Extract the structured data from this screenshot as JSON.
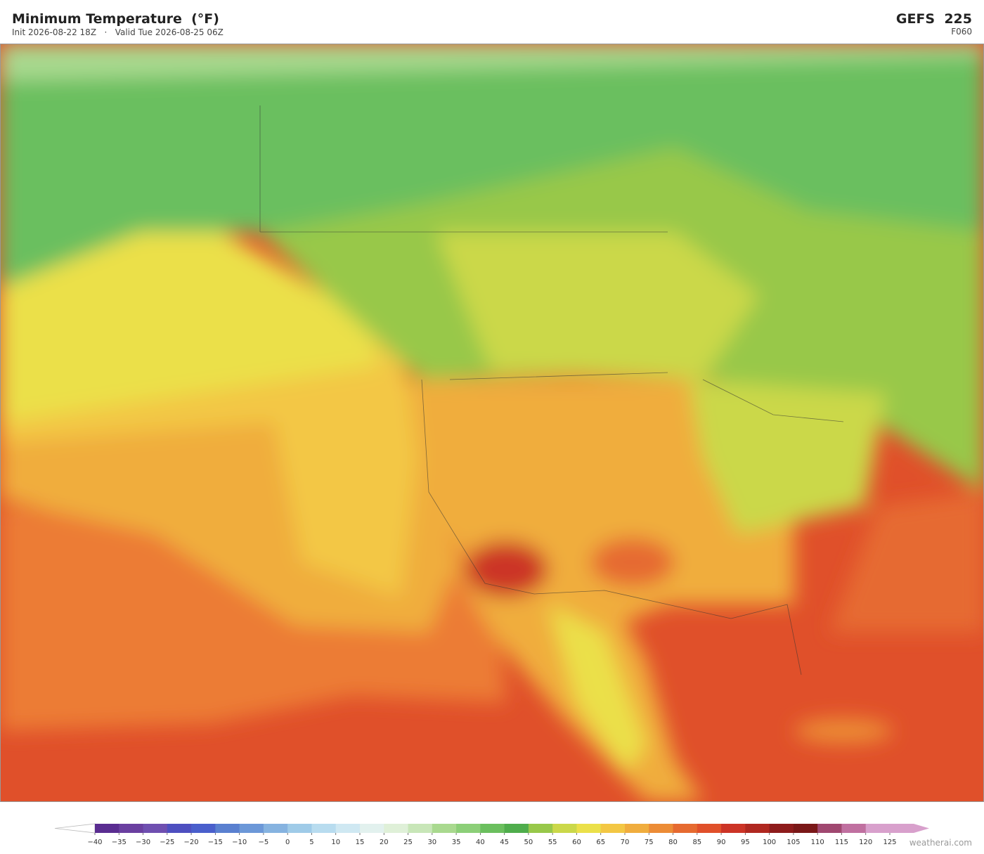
{
  "header": {
    "title": "Minimum Temperature  (°F)",
    "init": "Init 2026-08-22 18Z",
    "separator": "·",
    "valid": "Valid Tue 2026-08-25 06Z",
    "model": "GEFS  225",
    "forecast_hour": "F060"
  },
  "colorbar": {
    "ticks": [
      {
        "value": -40,
        "label": "−40"
      },
      {
        "value": -35,
        "label": "−35"
      },
      {
        "value": -30,
        "label": "−30"
      },
      {
        "value": -25,
        "label": "−25"
      },
      {
        "value": -20,
        "label": "−20"
      },
      {
        "value": -15,
        "label": "−15"
      },
      {
        "value": -10,
        "label": "−10"
      },
      {
        "value": -5,
        "label": "−5"
      },
      0,
      5,
      10,
      15,
      20,
      25,
      30,
      35,
      40,
      45,
      50,
      55,
      60,
      65,
      70,
      75,
      80,
      85,
      90,
      95,
      100,
      105,
      110,
      115,
      120,
      125
    ],
    "colors": [
      "#5a2d91",
      "#6a3fa0",
      "#6f4fb0",
      "#4e4fc0",
      "#4a5fcc",
      "#5a80d0",
      "#6c98d8",
      "#86b3e0",
      "#9fcbe8",
      "#b8dcef",
      "#cfe8f2",
      "#e2f1ee",
      "#dff0d8",
      "#c8e6b8",
      "#a9d98f",
      "#8ccf78",
      "#6bbf5e",
      "#4fad4c",
      "#98c84a",
      "#cbd84a",
      "#ebe04a",
      "#f3c744",
      "#f0ad3e",
      "#ec8c36",
      "#e66a30",
      "#e0502a",
      "#cc3426",
      "#b02820",
      "#8e1c1c",
      "#7a1818",
      "#a04870",
      "#c070a0",
      "#d8a0cc"
    ],
    "under_color": "#ffffff",
    "over_color": "#d8a0cc"
  },
  "footer": {
    "credit": "weatherai.com"
  }
}
